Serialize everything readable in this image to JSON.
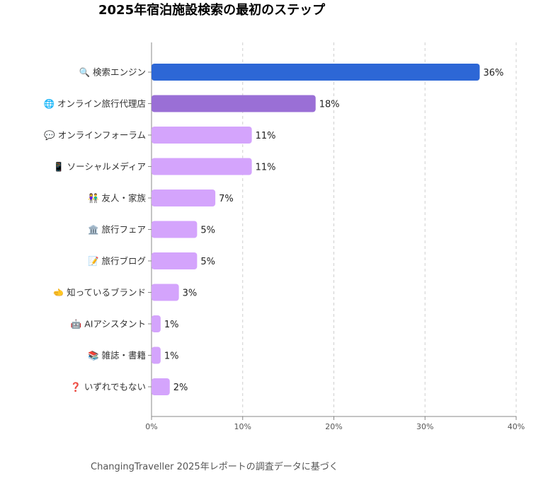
{
  "chart_data": {
    "type": "bar",
    "orientation": "horizontal",
    "title": "2025年宿泊施設検索の最初のステップ",
    "footer": "ChangingTraveller 2025年レポートの調査データに基づく",
    "xlim": [
      0,
      40
    ],
    "x_ticks": [
      "0%",
      "10%",
      "20%",
      "30%",
      "40%"
    ],
    "x_tick_values": [
      0,
      10,
      20,
      30,
      40
    ],
    "grid": "vertical-dashed",
    "categories": [
      "🔍 検索エンジン",
      "🌐 オンライン旅行代理店",
      "💬 オンラインフォーラム",
      "📱 ソーシャルメディア",
      "👫 友人・家族",
      "🏛️ 旅行フェア",
      "📝 旅行ブログ",
      "🫲 知っているブランド",
      "🤖 AIアシスタント",
      "📚 雑誌・書籍",
      "❓ いずれでもない"
    ],
    "values": [
      36,
      18,
      11,
      11,
      7,
      5,
      5,
      3,
      1,
      1,
      2
    ],
    "value_labels": [
      "36%",
      "18%",
      "11%",
      "11%",
      "7%",
      "5%",
      "5%",
      "3%",
      "1%",
      "1%",
      "2%"
    ],
    "colors": [
      "#2d67d6",
      "#9a6fd6",
      "#d4a4fc",
      "#d4a4fc",
      "#d4a4fc",
      "#d4a4fc",
      "#d4a4fc",
      "#d4a4fc",
      "#d4a4fc",
      "#d4a4fc",
      "#d4a4fc"
    ]
  }
}
